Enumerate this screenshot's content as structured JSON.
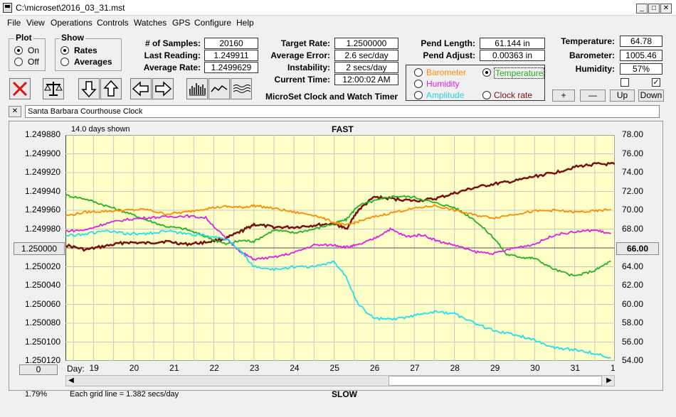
{
  "window": {
    "title": "C:\\microset\\2016_03_31.mst"
  },
  "menu": [
    "File",
    "View",
    "Operations",
    "Controls",
    "Watches",
    "GPS",
    "Configure",
    "Help"
  ],
  "plot": {
    "title": "Plot",
    "on": "On",
    "off": "Off"
  },
  "show": {
    "title": "Show",
    "rates": "Rates",
    "averages": "Averages"
  },
  "stats": {
    "samples_label": "# of Samples:",
    "samples": "20160",
    "last_label": "Last Reading:",
    "last": "1.249911",
    "avg_label": "Average Rate:",
    "avg": "1.2499629",
    "target_label": "Target Rate:",
    "target": "1.2500000",
    "err_label": "Average Error:",
    "err": "2.6 sec/day",
    "inst_label": "Instability:",
    "inst": "2 secs/day",
    "time_label": "Current Time:",
    "time": "12:00:02 AM",
    "pend_len_label": "Pend Length:",
    "pend_len": "61.144 in",
    "pend_adj_label": "Pend Adjust:",
    "pend_adj": "0.00363 in",
    "temp_label": "Temperature:",
    "temp": "64.78",
    "baro_label": "Barometer:",
    "baro": "1005.46",
    "hum_label": "Humidity:",
    "hum": "57%"
  },
  "app_caption": "MicroSet Clock and Watch Timer",
  "series_opts": {
    "barometer": "Barometer",
    "temperature": "Temperature",
    "humidity": "Humidity",
    "amplitude": "Amplitude",
    "clockrate": "Clock rate"
  },
  "buttons": {
    "plus": "+",
    "minus": "—",
    "up": "Up",
    "down": "Down",
    "close": "✕",
    "left_value": "1.250000",
    "right_value": "66.00",
    "zero": "0"
  },
  "clock_name": "Santa Barbara Courthouse Clock",
  "status": {
    "days_shown": "14.0 days shown",
    "fast": "FAST",
    "slow": "SLOW",
    "grid_note": "Each grid line = 1.382 secs/day",
    "percent": "1.79%"
  },
  "colors": {
    "temperature": "#22b222",
    "barometer": "#ff8c00",
    "humidity": "#e020e0",
    "amplitude": "#22e0e8",
    "rate": "#7a0f0f",
    "plot_bg": "#ffffc8"
  },
  "chart_data": {
    "type": "line",
    "x_label": "Day:",
    "x_ticks": [
      "19",
      "20",
      "21",
      "22",
      "23",
      "24",
      "25",
      "26",
      "27",
      "28",
      "29",
      "30",
      "31",
      "1"
    ],
    "y_left_ticks": [
      "1.249880",
      "1.249900",
      "1.249920",
      "1.249940",
      "1.249960",
      "1.249980",
      "1.250000",
      "1.250020",
      "1.250040",
      "1.250060",
      "1.250080",
      "1.250100",
      "1.250120"
    ],
    "y_right_ticks": [
      "78.00",
      "76.00",
      "74.00",
      "72.00",
      "70.00",
      "68.00",
      "66.00",
      "64.00",
      "62.00",
      "60.00",
      "58.00",
      "56.00",
      "54.00"
    ],
    "ylim_left": [
      1.24988,
      1.25012
    ],
    "ylim_right": [
      54,
      78
    ],
    "xlim": [
      18.3,
      32
    ],
    "series": [
      {
        "key": "rate",
        "axis": "left",
        "points": [
          [
            18.3,
            1.249997
          ],
          [
            18.8,
            1.250002
          ],
          [
            19.3,
            1.249998
          ],
          [
            19.8,
            1.249994
          ],
          [
            20.3,
            1.249995
          ],
          [
            20.8,
            1.249993
          ],
          [
            21.3,
            1.249996
          ],
          [
            21.8,
            1.249994
          ],
          [
            22.3,
            1.24999
          ],
          [
            22.7,
            1.249982
          ],
          [
            23.0,
            1.249975
          ],
          [
            23.5,
            1.249978
          ],
          [
            24.0,
            1.249978
          ],
          [
            24.5,
            1.249976
          ],
          [
            25.0,
            1.249974
          ],
          [
            25.3,
            1.24998
          ],
          [
            25.6,
            1.24996
          ],
          [
            26.0,
            1.249946
          ],
          [
            26.5,
            1.249948
          ],
          [
            27.0,
            1.24995
          ],
          [
            27.5,
            1.249948
          ],
          [
            28.0,
            1.249942
          ],
          [
            28.5,
            1.249936
          ],
          [
            29.0,
            1.249932
          ],
          [
            29.5,
            1.249929
          ],
          [
            30.0,
            1.249924
          ],
          [
            30.5,
            1.24992
          ],
          [
            31.0,
            1.249914
          ],
          [
            31.5,
            1.249911
          ],
          [
            32.0,
            1.249911
          ]
        ]
      },
      {
        "key": "temperature",
        "axis": "right",
        "points": [
          [
            18.3,
            71.6
          ],
          [
            18.8,
            71.2
          ],
          [
            19.3,
            70.5
          ],
          [
            19.8,
            69.8
          ],
          [
            20.3,
            69.0
          ],
          [
            20.8,
            68.3
          ],
          [
            21.3,
            68.0
          ],
          [
            21.8,
            67.2
          ],
          [
            22.3,
            66.4
          ],
          [
            22.7,
            66.8
          ],
          [
            23.0,
            66.7
          ],
          [
            23.5,
            67.9
          ],
          [
            24.0,
            67.6
          ],
          [
            24.5,
            68.0
          ],
          [
            25.0,
            68.6
          ],
          [
            25.3,
            69.0
          ],
          [
            25.6,
            70.5
          ],
          [
            26.0,
            71.0
          ],
          [
            26.5,
            71.5
          ],
          [
            27.0,
            71.4
          ],
          [
            27.5,
            70.8
          ],
          [
            28.0,
            70.3
          ],
          [
            28.5,
            69.0
          ],
          [
            29.0,
            67.0
          ],
          [
            29.3,
            65.3
          ],
          [
            29.7,
            65.0
          ],
          [
            30.0,
            64.9
          ],
          [
            30.5,
            63.7
          ],
          [
            31.0,
            63.0
          ],
          [
            31.5,
            63.6
          ],
          [
            31.9,
            64.6
          ]
        ]
      },
      {
        "key": "barometer",
        "axis": "right",
        "points": [
          [
            18.3,
            69.4
          ],
          [
            18.8,
            69.8
          ],
          [
            19.3,
            69.9
          ],
          [
            19.8,
            70.0
          ],
          [
            20.3,
            70.1
          ],
          [
            20.8,
            69.6
          ],
          [
            21.3,
            69.8
          ],
          [
            21.8,
            70.2
          ],
          [
            22.3,
            70.4
          ],
          [
            22.7,
            70.3
          ],
          [
            23.0,
            70.5
          ],
          [
            23.5,
            70.2
          ],
          [
            24.0,
            69.8
          ],
          [
            24.5,
            69.5
          ],
          [
            25.0,
            68.7
          ],
          [
            25.3,
            68.4
          ],
          [
            25.6,
            68.8
          ],
          [
            26.0,
            69.3
          ],
          [
            26.5,
            69.8
          ],
          [
            27.0,
            70.2
          ],
          [
            27.5,
            70.5
          ],
          [
            28.0,
            70.0
          ],
          [
            28.5,
            69.5
          ],
          [
            29.0,
            69.2
          ],
          [
            29.5,
            69.6
          ],
          [
            30.0,
            69.9
          ],
          [
            30.5,
            70.0
          ],
          [
            31.0,
            69.8
          ],
          [
            31.5,
            69.9
          ],
          [
            31.9,
            70.1
          ]
        ]
      },
      {
        "key": "humidity",
        "axis": "right",
        "points": [
          [
            18.3,
            67.8
          ],
          [
            18.8,
            67.9
          ],
          [
            19.3,
            68.6
          ],
          [
            19.8,
            69.0
          ],
          [
            20.3,
            69.2
          ],
          [
            20.8,
            69.3
          ],
          [
            21.3,
            69.4
          ],
          [
            21.8,
            69.2
          ],
          [
            22.3,
            67.0
          ],
          [
            22.7,
            65.5
          ],
          [
            23.0,
            64.8
          ],
          [
            23.5,
            65.0
          ],
          [
            24.0,
            65.5
          ],
          [
            24.5,
            66.3
          ],
          [
            25.0,
            66.3
          ],
          [
            25.3,
            66.1
          ],
          [
            25.6,
            66.3
          ],
          [
            26.0,
            67.0
          ],
          [
            26.4,
            68.0
          ],
          [
            26.8,
            67.2
          ],
          [
            27.2,
            67.4
          ],
          [
            27.6,
            66.7
          ],
          [
            28.0,
            66.3
          ],
          [
            28.5,
            65.6
          ],
          [
            29.0,
            65.4
          ],
          [
            29.5,
            66.0
          ],
          [
            30.0,
            66.4
          ],
          [
            30.5,
            67.4
          ],
          [
            31.0,
            67.7
          ],
          [
            31.5,
            67.9
          ],
          [
            31.9,
            67.5
          ]
        ]
      },
      {
        "key": "amplitude",
        "axis": "left",
        "points": [
          [
            18.3,
            1.249987
          ],
          [
            18.8,
            1.249985
          ],
          [
            19.3,
            1.249982
          ],
          [
            19.8,
            1.249985
          ],
          [
            20.3,
            1.249985
          ],
          [
            20.8,
            1.249982
          ],
          [
            21.3,
            1.249985
          ],
          [
            21.8,
            1.249987
          ],
          [
            22.3,
            1.24999
          ],
          [
            22.7,
            1.250005
          ],
          [
            23.0,
            1.25002
          ],
          [
            23.5,
            1.250023
          ],
          [
            24.0,
            1.25002
          ],
          [
            24.5,
            1.25002
          ],
          [
            25.0,
            1.250015
          ],
          [
            25.3,
            1.25003
          ],
          [
            25.6,
            1.25006
          ],
          [
            26.0,
            1.250075
          ],
          [
            26.5,
            1.250076
          ],
          [
            27.0,
            1.250072
          ],
          [
            27.5,
            1.250068
          ],
          [
            28.0,
            1.25007
          ],
          [
            28.5,
            1.25008
          ],
          [
            29.0,
            1.250088
          ],
          [
            29.5,
            1.250092
          ],
          [
            30.0,
            1.250098
          ],
          [
            30.5,
            1.250106
          ],
          [
            31.0,
            1.250108
          ],
          [
            31.5,
            1.250112
          ],
          [
            31.9,
            1.250117
          ]
        ]
      }
    ]
  }
}
